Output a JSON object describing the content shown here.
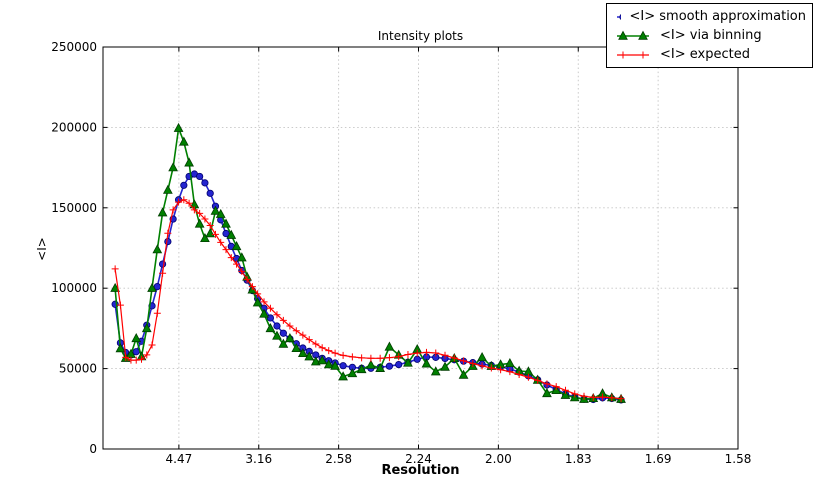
{
  "figure": {
    "background": "#ffffff",
    "grid_color": "#c4c4c4",
    "axes_color": "#000000"
  },
  "chart_data": {
    "type": "line",
    "title": "Intensity plots",
    "xlabel": "Resolution",
    "ylabel": "<I>",
    "grid": true,
    "legend_position": "top-right",
    "x_axis": {
      "note": "linear in 1/d^2; tick labels show resolution d in Angstrom",
      "tick_labels": [
        "4.47",
        "3.16",
        "2.58",
        "2.24",
        "2.00",
        "1.83",
        "1.69",
        "1.58"
      ],
      "tick_positions": [
        0.05,
        0.1,
        0.15,
        0.2,
        0.25,
        0.3,
        0.35,
        0.4
      ],
      "range": [
        0.0025,
        0.4
      ]
    },
    "y_axis": {
      "tick_labels": [
        "0",
        "50000",
        "100000",
        "150000",
        "200000",
        "250000"
      ],
      "tick_values": [
        0,
        50000,
        100000,
        150000,
        200000,
        250000
      ],
      "range": [
        0,
        250000
      ]
    },
    "x": [
      0.0101,
      0.0134,
      0.0167,
      0.02,
      0.0233,
      0.0266,
      0.0299,
      0.0332,
      0.0365,
      0.0398,
      0.0431,
      0.0464,
      0.0498,
      0.0531,
      0.0564,
      0.0597,
      0.063,
      0.0663,
      0.0696,
      0.0729,
      0.0762,
      0.0795,
      0.0828,
      0.0861,
      0.0894,
      0.0927,
      0.096,
      0.0993,
      0.1033,
      0.1073,
      0.1114,
      0.1154,
      0.1195,
      0.1235,
      0.1276,
      0.1316,
      0.1357,
      0.1397,
      0.1438,
      0.1478,
      0.1528,
      0.1586,
      0.1644,
      0.1702,
      0.176,
      0.1818,
      0.1876,
      0.1934,
      0.1992,
      0.205,
      0.2108,
      0.2166,
      0.2224,
      0.2282,
      0.234,
      0.2398,
      0.2456,
      0.2514,
      0.2572,
      0.263,
      0.2688,
      0.2746,
      0.2804,
      0.2862,
      0.292,
      0.2978,
      0.3036,
      0.3094,
      0.3152,
      0.321,
      0.3268
    ],
    "series": [
      {
        "name": "<I> smooth approximation",
        "marker": "circle",
        "color": "#2424d0",
        "marker_edge": "#00006e",
        "values": [
          90000,
          66000,
          60000,
          58500,
          60500,
          67000,
          77000,
          89000,
          101000,
          115000,
          129000,
          143000,
          155000,
          164000,
          169500,
          171000,
          169500,
          165500,
          159000,
          151000,
          142500,
          134000,
          126000,
          118500,
          111000,
          105000,
          98500,
          93500,
          87500,
          81500,
          76500,
          72000,
          68500,
          65500,
          62800,
          60700,
          58500,
          56400,
          54900,
          53500,
          51800,
          50800,
          50200,
          50200,
          50800,
          51500,
          52500,
          54000,
          55800,
          57200,
          57000,
          56300,
          55500,
          54600,
          53700,
          52800,
          52000,
          51200,
          49800,
          47800,
          45500,
          43000,
          39800,
          37000,
          34200,
          32300,
          31000,
          30800,
          31800,
          31400,
          30500
        ]
      },
      {
        "name": "<I> via binning",
        "marker": "triangle-up",
        "color": "#008000",
        "marker_edge": "#013d01",
        "values": [
          100000,
          62500,
          56500,
          59000,
          68800,
          57500,
          75000,
          100000,
          124000,
          147000,
          161000,
          175000,
          199500,
          191000,
          178000,
          152000,
          140000,
          131000,
          134000,
          148000,
          146000,
          140000,
          133000,
          126000,
          119000,
          107000,
          99000,
          91000,
          84000,
          75000,
          70300,
          65300,
          68800,
          62600,
          59500,
          57400,
          54300,
          55000,
          52500,
          51600,
          45000,
          47000,
          49500,
          52200,
          50200,
          63500,
          58500,
          53500,
          62000,
          53000,
          48100,
          51000,
          56400,
          46000,
          51500,
          57000,
          51500,
          52500,
          53300,
          48500,
          48100,
          42900,
          34600,
          36500,
          33500,
          32000,
          31000,
          31500,
          34500,
          32000,
          31000
        ]
      },
      {
        "name": "<I> expected",
        "marker": "plus",
        "color": "#ff0000",
        "marker_edge": "#ff0000",
        "values": [
          112000,
          89500,
          57000,
          55300,
          55300,
          55800,
          58500,
          64700,
          84400,
          109300,
          134200,
          148700,
          153500,
          155000,
          152800,
          148700,
          146500,
          143000,
          139000,
          133500,
          128500,
          124000,
          119000,
          115000,
          110500,
          105500,
          101000,
          96500,
          91500,
          87500,
          83500,
          80000,
          76500,
          73500,
          70800,
          68000,
          65300,
          63000,
          61200,
          59600,
          58200,
          57300,
          56700,
          56400,
          56400,
          56800,
          57400,
          58800,
          59600,
          60100,
          59700,
          58300,
          56600,
          54800,
          53200,
          51700,
          50400,
          49300,
          48100,
          46300,
          44600,
          42700,
          40500,
          38800,
          36500,
          34300,
          32800,
          32100,
          32300,
          31900,
          31300
        ]
      }
    ]
  }
}
